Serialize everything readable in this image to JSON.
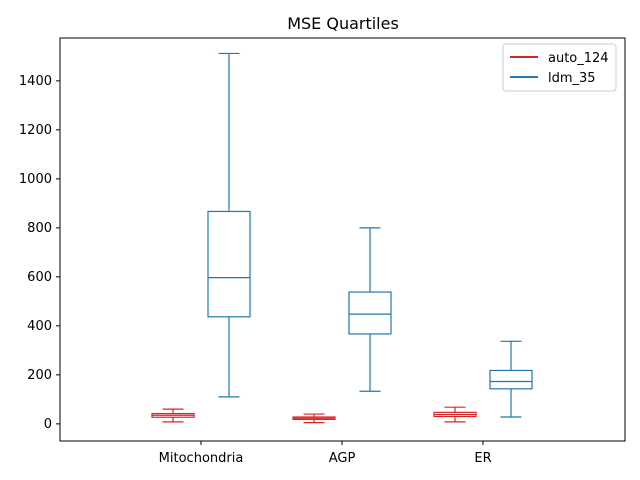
{
  "chart_data": {
    "type": "box",
    "title": "MSE Quartiles",
    "xlabel": "",
    "ylabel": "",
    "categories": [
      "Mitochondria",
      "AGP",
      "ER"
    ],
    "ylim": [
      -70,
      1575
    ],
    "yticks": [
      0,
      200,
      400,
      600,
      800,
      1000,
      1200,
      1400
    ],
    "grid": false,
    "legend_position": "top-right",
    "series": [
      {
        "name": "auto_124",
        "color": "#d62728",
        "boxes": [
          {
            "whislo": 8,
            "q1": 27,
            "median": 35,
            "q3": 42,
            "whishi": 60
          },
          {
            "whislo": 5,
            "q1": 18,
            "median": 23,
            "q3": 28,
            "whishi": 40
          },
          {
            "whislo": 8,
            "q1": 30,
            "median": 38,
            "q3": 47,
            "whishi": 68
          }
        ]
      },
      {
        "name": "ldm_35",
        "color": "#1f77b4",
        "boxes": [
          {
            "whislo": 110,
            "q1": 437,
            "median": 597,
            "q3": 867,
            "whishi": 1512
          },
          {
            "whislo": 133,
            "q1": 367,
            "median": 448,
            "q3": 538,
            "whishi": 800
          },
          {
            "whislo": 28,
            "q1": 143,
            "median": 173,
            "q3": 218,
            "whishi": 337
          }
        ]
      }
    ]
  }
}
